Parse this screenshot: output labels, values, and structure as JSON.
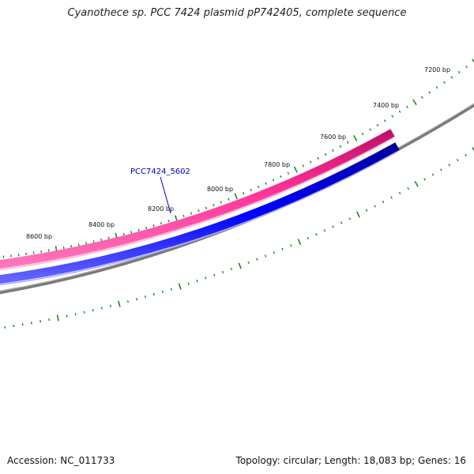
{
  "title": "Cyanothece sp. PCC 7424 plasmid pP742405, complete sequence",
  "scale_labels": [
    "7200 bp",
    "7400 bp",
    "7600 bp",
    "7800 bp",
    "8000 bp",
    "8200 bp",
    "8400 bp",
    "8600 bp"
  ],
  "gene": {
    "name": "PCC7424_5602"
  },
  "colors": {
    "backbone": "#808080",
    "forward_gene": "#ff3399",
    "reverse_gene": "#0000ff",
    "ticks": "#1a8a1a",
    "gene_label": "#0000cc"
  },
  "footer": {
    "accession_label": "Accession: NC_011733",
    "summary": "Topology: circular; Length: 18,083 bp; Genes: 16"
  }
}
